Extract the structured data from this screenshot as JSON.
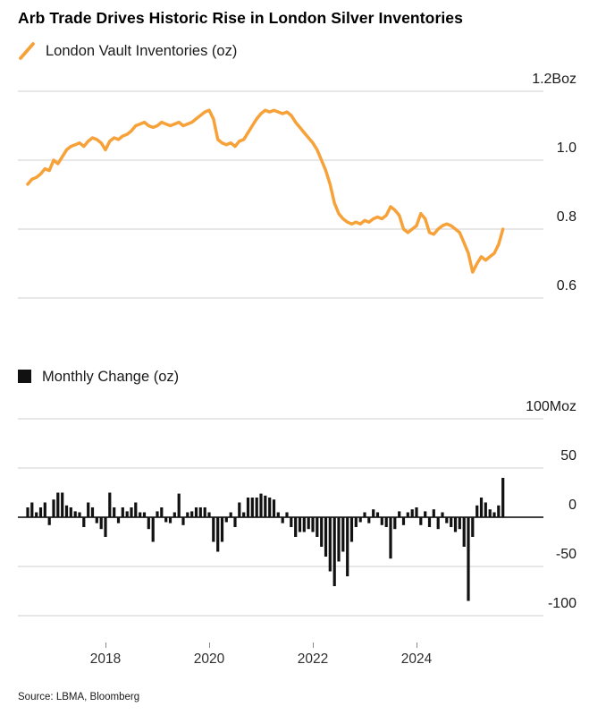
{
  "title": "Arb Trade Drives Historic Rise in London Silver Inventories",
  "source": "Source: LBMA, Bloomberg",
  "colors": {
    "line": "#F7A139",
    "bar": "#111111",
    "grid": "#cfcfcf",
    "zero_axis": "#000000",
    "tick_text": "#1a1a1a"
  },
  "chart_data": [
    {
      "type": "line",
      "title": "London Vault Inventories (oz)",
      "unit": "Boz",
      "x_unit": "month",
      "x_start": "2016-07",
      "legend_position": "top-left",
      "grid": "horizontal",
      "ylim": [
        0.55,
        1.25
      ],
      "y_ticks": [
        {
          "label": "1.2Boz",
          "value": 1.2
        },
        {
          "label": "1.0",
          "value": 1.0
        },
        {
          "label": "0.8",
          "value": 0.8
        },
        {
          "label": "0.6",
          "value": 0.6
        }
      ],
      "x_ticks": [
        {
          "label": "2018",
          "month_index": 18
        },
        {
          "label": "2020",
          "month_index": 42
        },
        {
          "label": "2022",
          "month_index": 66
        },
        {
          "label": "2024",
          "month_index": 90
        }
      ],
      "values": [
        0.93,
        0.945,
        0.95,
        0.96,
        0.975,
        0.97,
        1.0,
        0.99,
        1.01,
        1.03,
        1.04,
        1.045,
        1.05,
        1.04,
        1.055,
        1.065,
        1.06,
        1.05,
        1.03,
        1.055,
        1.065,
        1.06,
        1.07,
        1.075,
        1.085,
        1.1,
        1.105,
        1.11,
        1.1,
        1.095,
        1.1,
        1.11,
        1.105,
        1.1,
        1.105,
        1.11,
        1.1,
        1.105,
        1.11,
        1.12,
        1.13,
        1.14,
        1.145,
        1.12,
        1.06,
        1.05,
        1.045,
        1.05,
        1.04,
        1.055,
        1.06,
        1.08,
        1.1,
        1.12,
        1.135,
        1.145,
        1.14,
        1.145,
        1.14,
        1.135,
        1.14,
        1.13,
        1.11,
        1.095,
        1.08,
        1.065,
        1.05,
        1.03,
        1.0,
        0.97,
        0.93,
        0.875,
        0.845,
        0.83,
        0.82,
        0.815,
        0.82,
        0.815,
        0.825,
        0.82,
        0.83,
        0.835,
        0.83,
        0.84,
        0.865,
        0.855,
        0.84,
        0.8,
        0.79,
        0.8,
        0.81,
        0.845,
        0.83,
        0.79,
        0.785,
        0.8,
        0.81,
        0.815,
        0.81,
        0.8,
        0.79,
        0.76,
        0.73,
        0.675,
        0.7,
        0.72,
        0.71,
        0.72,
        0.73,
        0.755,
        0.8
      ]
    },
    {
      "type": "bar",
      "title": "Monthly Change (oz)",
      "unit": "Moz",
      "x_unit": "month",
      "x_start": "2016-07",
      "legend_position": "top-left",
      "grid": "horizontal",
      "ylim": [
        -110,
        110
      ],
      "y_ticks": [
        {
          "label": "100Moz",
          "value": 100
        },
        {
          "label": "50",
          "value": 50
        },
        {
          "label": "0",
          "value": 0
        },
        {
          "label": "-50",
          "value": -50
        },
        {
          "label": "-100",
          "value": -100
        }
      ],
      "x_ticks": [
        {
          "label": "2018",
          "month_index": 18
        },
        {
          "label": "2020",
          "month_index": 42
        },
        {
          "label": "2022",
          "month_index": 66
        },
        {
          "label": "2024",
          "month_index": 90
        }
      ],
      "values": [
        10,
        15,
        5,
        10,
        15,
        -8,
        18,
        25,
        25,
        12,
        10,
        6,
        5,
        -10,
        15,
        10,
        -6,
        -12,
        -20,
        25,
        10,
        -6,
        10,
        6,
        10,
        15,
        5,
        5,
        -12,
        -25,
        6,
        10,
        -5,
        -6,
        5,
        24,
        -8,
        5,
        6,
        10,
        10,
        10,
        5,
        -25,
        -35,
        -25,
        -5,
        5,
        -10,
        15,
        5,
        20,
        20,
        20,
        24,
        22,
        20,
        18,
        5,
        -6,
        5,
        -10,
        -20,
        -15,
        -15,
        -12,
        -15,
        -20,
        -30,
        -40,
        -55,
        -70,
        -45,
        -35,
        -60,
        -25,
        -10,
        -5,
        5,
        -6,
        8,
        5,
        -8,
        -10,
        -42,
        -12,
        6,
        -8,
        5,
        8,
        10,
        -8,
        6,
        -10,
        8,
        -12,
        5,
        -6,
        -10,
        -15,
        -12,
        -30,
        -85,
        -20,
        12,
        20,
        15,
        8,
        5,
        12,
        40
      ]
    }
  ]
}
